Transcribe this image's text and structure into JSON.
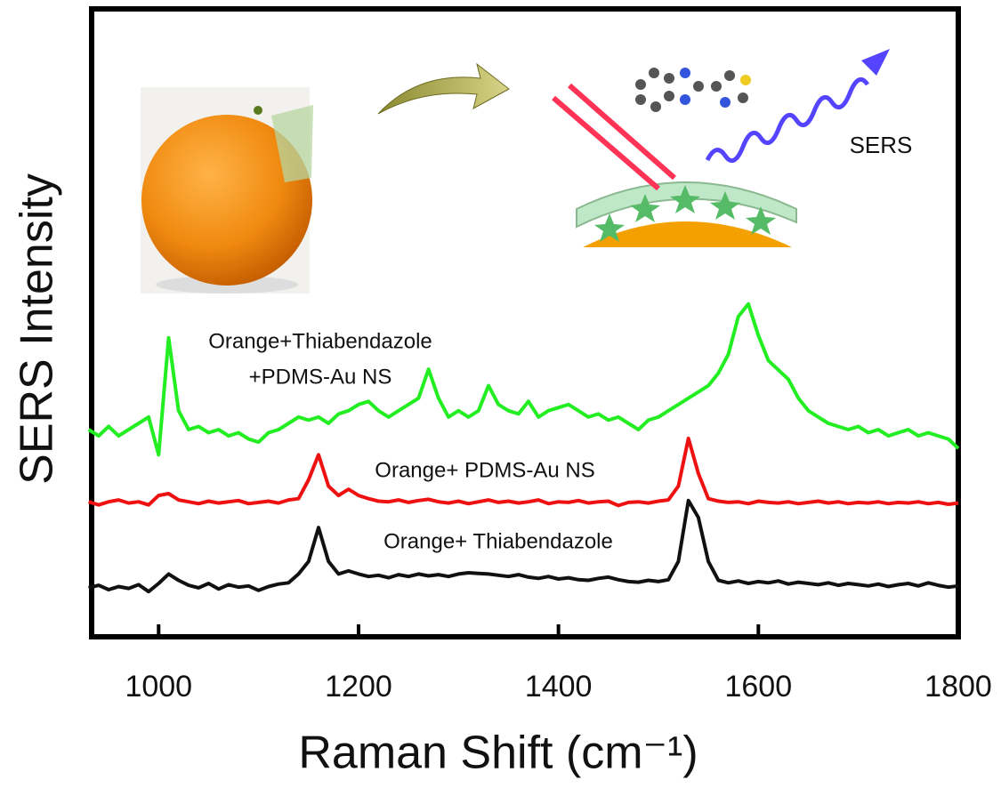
{
  "chart_data": {
    "type": "line",
    "x_label": "Raman Shift (cm⁻¹)",
    "y_label": "SERS Intensity",
    "xlim": [
      933,
      1800
    ],
    "ylim": [
      0,
      100
    ],
    "xticks": [
      1000,
      1200,
      1400,
      1600,
      1800
    ],
    "x": [
      930,
      940,
      950,
      960,
      970,
      980,
      990,
      1000,
      1010,
      1020,
      1030,
      1040,
      1050,
      1060,
      1070,
      1080,
      1090,
      1100,
      1110,
      1120,
      1130,
      1140,
      1150,
      1160,
      1170,
      1180,
      1190,
      1200,
      1210,
      1220,
      1230,
      1240,
      1250,
      1260,
      1270,
      1280,
      1290,
      1300,
      1310,
      1320,
      1330,
      1340,
      1350,
      1360,
      1370,
      1380,
      1390,
      1400,
      1410,
      1420,
      1430,
      1440,
      1450,
      1460,
      1470,
      1480,
      1490,
      1500,
      1510,
      1520,
      1530,
      1540,
      1550,
      1560,
      1570,
      1580,
      1590,
      1600,
      1610,
      1620,
      1630,
      1640,
      1650,
      1660,
      1670,
      1680,
      1690,
      1700,
      1710,
      1720,
      1730,
      1740,
      1750,
      1760,
      1770,
      1780,
      1790,
      1800
    ],
    "series": [
      {
        "label": [
          "Orange+Thiabendazole",
          "+PDMS-Au NS"
        ],
        "color": "#22ee22",
        "values": [
          33,
          32,
          33.5,
          32,
          33,
          34,
          35,
          29,
          47.6,
          36,
          33,
          33.5,
          32.5,
          33,
          32,
          32.5,
          31.5,
          31,
          32.5,
          33,
          34,
          35,
          34.5,
          35,
          34,
          35.5,
          36,
          37,
          37.5,
          36,
          35,
          36,
          37,
          38,
          42.6,
          38,
          35,
          36,
          35,
          36,
          40,
          37,
          36,
          35.5,
          37.5,
          35,
          36,
          36.5,
          37,
          36,
          35,
          35.5,
          34.5,
          35,
          34,
          33,
          34.5,
          35,
          36,
          37,
          38,
          39,
          40,
          42,
          45,
          51,
          53,
          48,
          44,
          42.5,
          41,
          38,
          36,
          35,
          34,
          33.5,
          33,
          33.5,
          32.5,
          33,
          32,
          32.5,
          33,
          32,
          32.5,
          32,
          31.5,
          30
        ]
      },
      {
        "label": [
          "Orange+ PDMS-Au NS"
        ],
        "color": "#ee1111",
        "values": [
          21.5,
          21,
          21.5,
          21.8,
          21.3,
          21.5,
          21,
          22.5,
          22.8,
          21.8,
          21.5,
          21.2,
          21.6,
          21.3,
          21.5,
          21.7,
          21.2,
          21.4,
          21.6,
          21.3,
          21.8,
          22,
          25,
          29,
          24,
          22.5,
          23.5,
          22.5,
          22,
          21.6,
          21.5,
          21.8,
          21.4,
          21.7,
          21.9,
          21.5,
          21.3,
          21.6,
          21.2,
          21.5,
          21.8,
          21.4,
          21.6,
          21.3,
          21.5,
          21.8,
          21.2,
          21.5,
          21.4,
          21.7,
          21.3,
          21.5,
          21.6,
          20.9,
          21.4,
          21.5,
          21.3,
          21.6,
          21.8,
          24,
          31.6,
          26,
          22,
          21.6,
          21.4,
          21.5,
          21.2,
          21.6,
          21.4,
          21.3,
          21.5,
          21.2,
          21.4,
          21.6,
          21.3,
          21.5,
          21.2,
          21.4,
          21.3,
          21.5,
          21.2,
          21.4,
          21.3,
          21.5,
          21.2,
          21.4,
          21.1,
          21.3
        ]
      },
      {
        "label": [
          "Orange+ Thiabendazole"
        ],
        "color": "#111111",
        "values": [
          7.8,
          8.2,
          7.5,
          8,
          7.7,
          8.3,
          7.2,
          8.5,
          10,
          9,
          8.2,
          7.8,
          8.5,
          7.6,
          8.3,
          7.9,
          8.1,
          7.4,
          8,
          8.4,
          8.6,
          10,
          12,
          17.4,
          12,
          10,
          10.5,
          10,
          9.6,
          9.8,
          9.4,
          9.9,
          9.6,
          10,
          9.7,
          9.9,
          9.6,
          10,
          10.2,
          10.1,
          10,
          9.8,
          9.6,
          9.9,
          9.5,
          9.3,
          9.6,
          9.2,
          9.4,
          9.1,
          9,
          9.3,
          9.5,
          9.1,
          8.8,
          8.7,
          9,
          8.8,
          9.1,
          12,
          21.7,
          19,
          12,
          9,
          8.6,
          8.9,
          8.5,
          8.8,
          8.6,
          8.9,
          8.4,
          8.7,
          8.5,
          8.3,
          8.6,
          8.2,
          8.5,
          8.3,
          8.1,
          8.4,
          8,
          8.3,
          8.5,
          8.1,
          8.6,
          8.2,
          7.9,
          8.1
        ]
      }
    ],
    "inset_text": "SERS"
  }
}
